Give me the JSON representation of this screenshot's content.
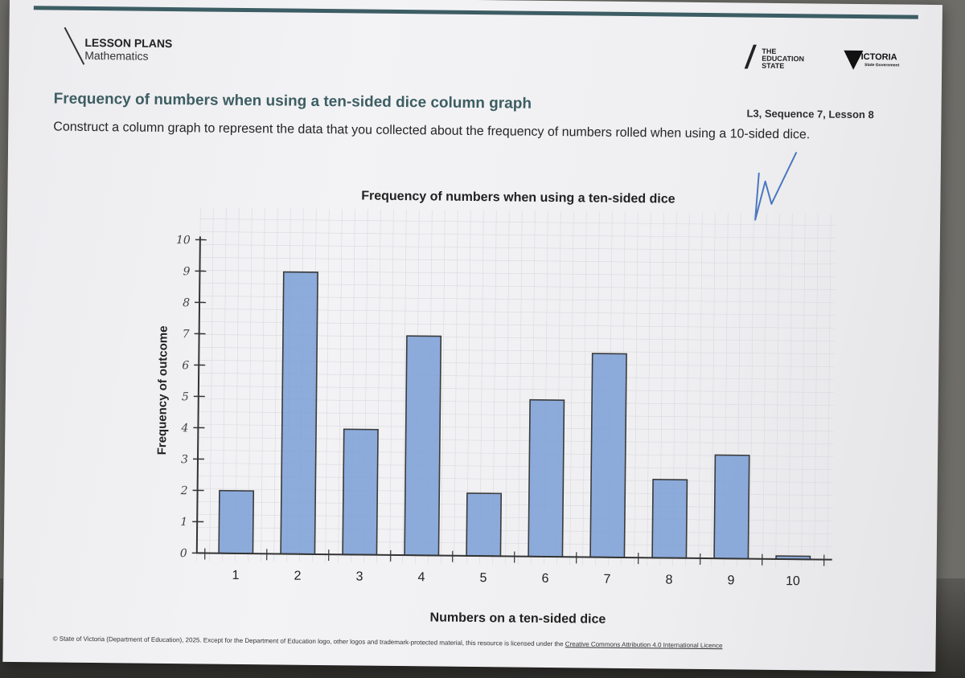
{
  "header": {
    "brand_line1": "LESSON PLANS",
    "brand_line2": "Mathematics",
    "logo_education_line1": "THE",
    "logo_education_line2": "EDUCATION",
    "logo_education_line3": "STATE",
    "logo_victoria": "VICTORIA",
    "logo_victoria_sub": "State Government"
  },
  "document": {
    "title": "Frequency of numbers when using a ten-sided dice column graph",
    "lesson_ref": "L3, Sequence 7, Lesson 8",
    "instructions": "Construct a column graph to represent the data that you collected about the frequency of numbers rolled when using a 10-sided dice."
  },
  "footer": {
    "text": "© State of Victoria (Department of Education), 2025. Except for the Department of Education logo, other logos and trademark-protected material, this resource is licensed under the",
    "link": "Creative Commons Attribution 4.0 International Licence"
  },
  "colors": {
    "bar_fill": "#7a9fd6",
    "bar_stroke": "#3a3a3a",
    "axis": "#333333",
    "title_teal": "#3d5e63"
  },
  "chart_data": {
    "type": "bar",
    "title": "Frequency of numbers when using a ten-sided dice",
    "xlabel": "Numbers on a ten-sided dice",
    "ylabel": "Frequency of outcome",
    "categories": [
      "1",
      "2",
      "3",
      "4",
      "5",
      "6",
      "7",
      "8",
      "9",
      "10"
    ],
    "values": [
      2,
      9,
      4,
      7,
      2,
      5,
      6.5,
      2.5,
      3.3,
      0.1
    ],
    "ylim": [
      0,
      10
    ],
    "yticks": [
      "0",
      "1",
      "2",
      "3",
      "4",
      "5",
      "6",
      "7",
      "8",
      "9",
      "10"
    ],
    "grid": true,
    "legend": "none"
  }
}
